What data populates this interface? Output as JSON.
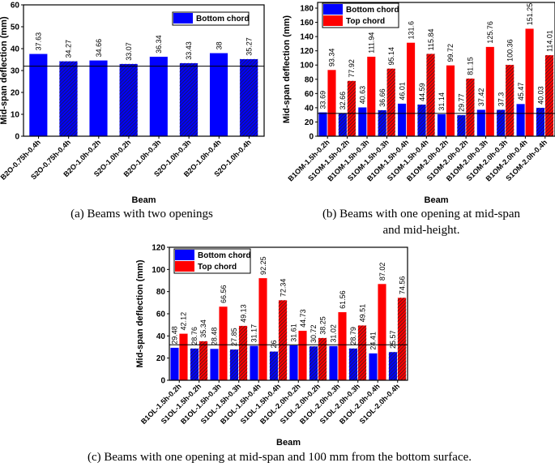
{
  "chart_data": [
    {
      "type": "bar",
      "caption": "(a)  Beams with two openings",
      "xlabel": "Beam",
      "ylabel": "Mid-span deflection (mm)",
      "ylim": [
        0,
        60
      ],
      "yticks": [
        0,
        10,
        20,
        30,
        40,
        50,
        60
      ],
      "reference_line": 32,
      "legend": "top-right",
      "categories": [
        "B2O-0.75h-0.4h",
        "S2O-0.75h-0.4h",
        "B2O-1.0h-0.2h",
        "S2O-1.0h-0.2h",
        "B2O-1.0h-0.3h",
        "S2O-1.0h-0.3h",
        "B2O-1.0h-0.4h",
        "S2O-1.0h-0.4h"
      ],
      "series": [
        {
          "name": "Bottom chord",
          "color": "#0000ff",
          "values": [
            37.63,
            34.27,
            34.66,
            33.07,
            36.34,
            33.43,
            38,
            35.27
          ],
          "labels": [
            "37.63",
            "34.27",
            "34.66",
            "33.07",
            "36.34",
            "33.43",
            "38",
            "35.27"
          ]
        }
      ]
    },
    {
      "type": "bar",
      "caption": [
        "(b)  Beams with one opening at mid-span",
        "and mid-height."
      ],
      "xlabel": "Beam",
      "ylabel": "Mid-span deflection (mm)",
      "ylim": [
        0,
        188
      ],
      "yticks": [
        0,
        20,
        40,
        60,
        80,
        100,
        120,
        140,
        160,
        180
      ],
      "reference_line": 32,
      "legend": "top-left",
      "categories": [
        "B1OM-1.5h-0.2h",
        "S1OM-1.5h-0.2h",
        "B1OM-1.5h-0.3h",
        "S1OM-1.5h-0.3h",
        "B1OM-1.5h-0.4h",
        "S1OM-1.5h-0.4h",
        "B1OM-2.0h-0.2h",
        "S1OM-2.0h-0.2h",
        "B1OM-2.0h-0.3h",
        "S1OM-2.0h-0.3h",
        "B1OM-2.0h-0.4h",
        "S1OM-2.0h-0.4h"
      ],
      "series": [
        {
          "name": "Bottom chord",
          "color": "#0000ff",
          "values": [
            33.69,
            32.66,
            40.63,
            36.66,
            46.01,
            44.59,
            31.14,
            29.77,
            37.42,
            37.3,
            45.47,
            40.03
          ],
          "labels": [
            "33.69",
            "32.66",
            "40.63",
            "36.66",
            "46.01",
            "44.59",
            "31.14",
            "29.77",
            "37.42",
            "37.3",
            "45.47",
            "40.03"
          ]
        },
        {
          "name": "Top chord",
          "color": "#ff0000",
          "values": [
            93.34,
            77.92,
            111.94,
            95.14,
            131.6,
            115.84,
            99.72,
            81.15,
            125.76,
            100.36,
            151.25,
            114.01
          ],
          "labels": [
            "93.34",
            "77.92",
            "111.94",
            "95.14",
            "131.6",
            "115.84",
            "99.72",
            "81.15",
            "125.76",
            "100.36",
            "151.25",
            "114.01"
          ]
        }
      ]
    },
    {
      "type": "bar",
      "caption": "(c)  Beams with one opening at mid-span and 100 mm from the bottom surface.",
      "xlabel": "Beam",
      "ylabel": "Mid-span deflection (mm)",
      "ylim": [
        0,
        120
      ],
      "yticks": [
        0,
        20,
        40,
        60,
        80,
        100,
        120
      ],
      "reference_line": 32,
      "legend": "top-left",
      "categories": [
        "B1OL-1.5h-0.2h",
        "S1OL-1.5h-0.2h",
        "B1OL-1.5h-0.3h",
        "S1OL-1.5h-0.3h",
        "B1OL-1.5h-0.4h",
        "S1OL-1.5h-0.4h",
        "B1OL-2.0h-0.2h",
        "S1OL-2.0h-0.2h",
        "B1OL-2.0h-0.3h",
        "S1OL-2.0h-0.3h",
        "B1OL-2.0h-0.4h",
        "S1OL-2.0h-0.4h"
      ],
      "series": [
        {
          "name": "Bottom chord",
          "color": "#0000ff",
          "values": [
            29.48,
            28.76,
            28.48,
            27.85,
            31.17,
            26,
            31.61,
            30.72,
            31.02,
            28.79,
            24.41,
            25.57
          ],
          "labels": [
            "29.48",
            "28.76",
            "28.48",
            "27.85",
            "31.17",
            "26",
            "31.61",
            "30.72",
            "31.02",
            "28.79",
            "24.41",
            "25.57"
          ]
        },
        {
          "name": "Top chord",
          "color": "#ff0000",
          "values": [
            42.12,
            35.34,
            66.56,
            49.13,
            92.25,
            72.34,
            44.73,
            38.25,
            61.56,
            49.51,
            87.02,
            74.56
          ],
          "labels": [
            "42.12",
            "35.34",
            "66.56",
            "49.13",
            "92.25",
            "72.34",
            "44.73",
            "38.25",
            "61.56",
            "49.51",
            "87.02",
            "74.56"
          ]
        }
      ]
    }
  ]
}
